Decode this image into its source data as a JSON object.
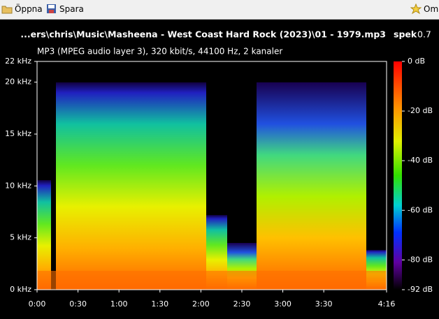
{
  "toolbar": {
    "open": "Öppna",
    "save": "Spara",
    "about": "Om"
  },
  "header": {
    "file": "...ers\\chris\\Music\\Masheena - West Coast Hard Rock (2023)\\01 - 1979.mp3",
    "app": "spek",
    "version": "0.7",
    "info": "MP3 (MPEG audio layer 3), 320 kbit/s, 44100 Hz, 2 kanaler"
  },
  "chart_data": {
    "type": "spectrogram",
    "ylim": [
      0,
      22
    ],
    "yticks": [
      {
        "value": 0,
        "label": "0 kHz"
      },
      {
        "value": 5,
        "label": "5 kHz"
      },
      {
        "value": 10,
        "label": "10 kHz"
      },
      {
        "value": 15,
        "label": "15 kHz"
      },
      {
        "value": 20,
        "label": "20 kHz"
      },
      {
        "value": 22,
        "label": "22 kHz"
      }
    ],
    "xlim": [
      0,
      256
    ],
    "xticks": [
      {
        "value": 0,
        "label": "0:00"
      },
      {
        "value": 30,
        "label": "0:30"
      },
      {
        "value": 60,
        "label": "1:00"
      },
      {
        "value": 90,
        "label": "1:30"
      },
      {
        "value": 120,
        "label": "2:00"
      },
      {
        "value": 150,
        "label": "2:30"
      },
      {
        "value": 180,
        "label": "3:00"
      },
      {
        "value": 210,
        "label": "3:30"
      },
      {
        "value": 256,
        "label": "4:16"
      }
    ],
    "colorbar": {
      "lim": [
        -92,
        0
      ],
      "ticks": [
        {
          "value": 0,
          "label": "0 dB"
        },
        {
          "value": -20,
          "label": "-20 dB"
        },
        {
          "value": -40,
          "label": "-40 dB"
        },
        {
          "value": -60,
          "label": "-60 dB"
        },
        {
          "value": -80,
          "label": "-80 dB"
        },
        {
          "value": -92,
          "label": "-92 dB"
        }
      ]
    }
  }
}
